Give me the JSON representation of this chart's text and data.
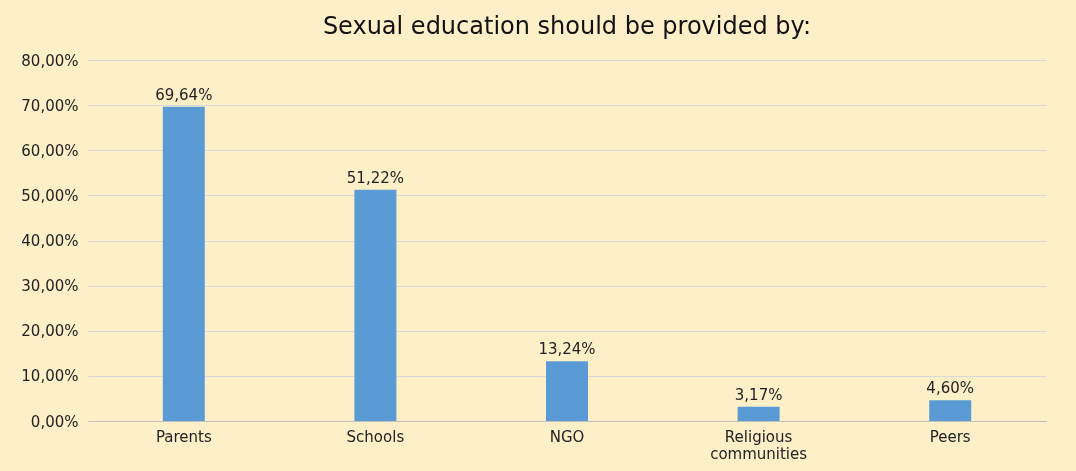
{
  "chart_data": {
    "type": "bar",
    "title": "Sexual education should be provided by:",
    "categories": [
      "Parents",
      "Schools",
      "NGO",
      "Religious communities",
      "Peers"
    ],
    "values": [
      69.64,
      51.22,
      13.24,
      3.17,
      4.6
    ],
    "value_labels": [
      "69,64%",
      "51,22%",
      "13,24%",
      "3,17%",
      "4,60%"
    ],
    "color": "#5b9bd5",
    "ylim": [
      0,
      80
    ],
    "yticks": [
      {
        "value": 0,
        "label": "0,00%"
      },
      {
        "value": 10,
        "label": "10,00%"
      },
      {
        "value": 20,
        "label": "20,00%"
      },
      {
        "value": 30,
        "label": "30,00%"
      },
      {
        "value": 40,
        "label": "40,00%"
      },
      {
        "value": 50,
        "label": "50,00%"
      },
      {
        "value": 60,
        "label": "60,00%"
      },
      {
        "value": 70,
        "label": "70,00%"
      },
      {
        "value": 80,
        "label": "80,00%"
      }
    ],
    "grid": "y"
  }
}
